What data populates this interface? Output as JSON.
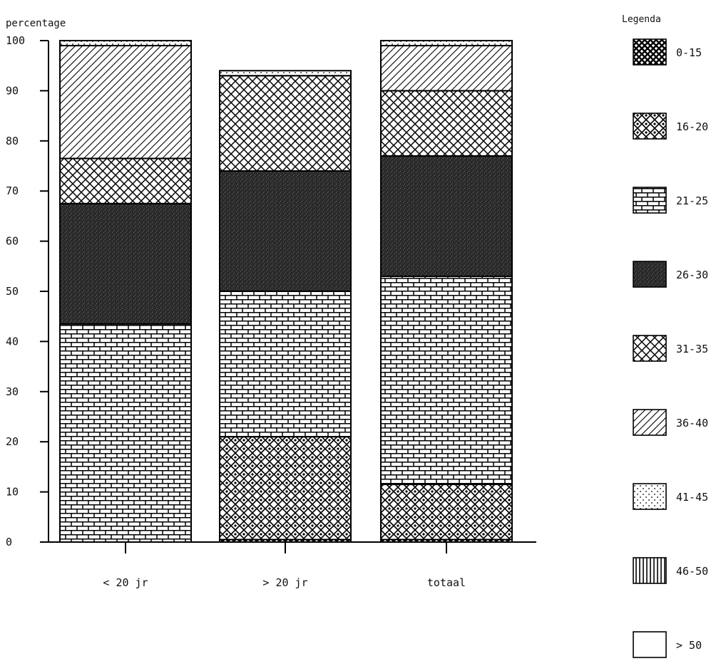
{
  "chart_data": {
    "type": "bar",
    "stacked": true,
    "ylabel": "percentage",
    "ylim": [
      0,
      100
    ],
    "yticks": [
      "0",
      "10",
      "20",
      "30",
      "40",
      "50",
      "60",
      "70",
      "80",
      "90",
      "100"
    ],
    "categories": [
      "< 20 jr",
      "> 20 jr",
      "totaal"
    ],
    "legend_title": "Legenda",
    "legend_position": "right",
    "series": [
      {
        "name": "0-15",
        "values": [
          0,
          0.5,
          0.5
        ],
        "pattern": "dense-lattice"
      },
      {
        "name": "16-20",
        "values": [
          0,
          20.5,
          11
        ],
        "pattern": "bubbles"
      },
      {
        "name": "21-25",
        "values": [
          43.5,
          29,
          41.5
        ],
        "pattern": "brick"
      },
      {
        "name": "26-30",
        "values": [
          24,
          24,
          24
        ],
        "pattern": "dark"
      },
      {
        "name": "31-35",
        "values": [
          9,
          19,
          13
        ],
        "pattern": "crosshatch"
      },
      {
        "name": "36-40",
        "values": [
          22.5,
          0,
          9
        ],
        "pattern": "diagonal"
      },
      {
        "name": "41-45",
        "values": [
          1,
          1,
          1
        ],
        "pattern": "dots"
      },
      {
        "name": "46-50",
        "values": [
          0,
          0,
          0
        ],
        "pattern": "vertical"
      },
      {
        "name": "> 50",
        "values": [
          0,
          0,
          0
        ],
        "pattern": "blank"
      }
    ]
  }
}
